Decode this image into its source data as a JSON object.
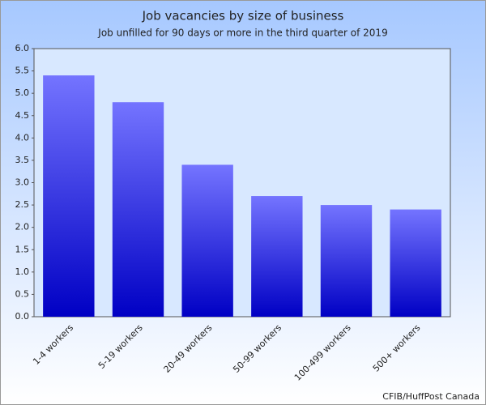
{
  "chart_data": {
    "type": "bar",
    "title": "Job vacancies by size of business",
    "subtitle": "Job unfilled for 90 days or more in the third quarter of 2019",
    "source": "CFIB/HuffPost Canada",
    "categories": [
      "1-4 workers",
      "5-19 workers",
      "20-49 workers",
      "50-99 workers",
      "100-499 workers",
      "500+ workers"
    ],
    "values": [
      5.4,
      4.8,
      3.4,
      2.7,
      2.5,
      2.4
    ],
    "color": [
      "#7474ff",
      "#0000c4"
    ],
    "ylim": [
      0,
      6
    ],
    "yticks": [
      {
        "value": 0,
        "label": "0.0"
      },
      {
        "value": 0.5,
        "label": "0.5"
      },
      {
        "value": 1,
        "label": "1.0"
      },
      {
        "value": 1.5,
        "label": "1.5"
      },
      {
        "value": 2,
        "label": "2.0"
      },
      {
        "value": 2.5,
        "label": "2.5"
      },
      {
        "value": 3,
        "label": "3.0"
      },
      {
        "value": 3.5,
        "label": "3.5"
      },
      {
        "value": 4,
        "label": "4.0"
      },
      {
        "value": 4.5,
        "label": "4.5"
      },
      {
        "value": 5,
        "label": "5.0"
      },
      {
        "value": 5.5,
        "label": "5.5"
      },
      {
        "value": 6,
        "label": "6.0"
      }
    ],
    "grid": false
  }
}
